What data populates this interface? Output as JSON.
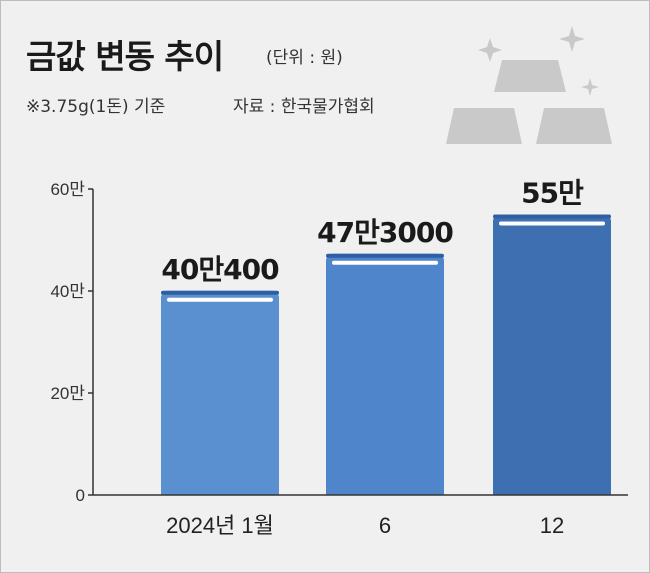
{
  "header": {
    "title": "금값 변동 추이",
    "unit": "(단위 : 원)",
    "note": "※3.75g(1돈) 기준",
    "source": "자료 : 한국물가협회"
  },
  "colors": {
    "bar_1": "#5a8fd0",
    "bar_2": "#4f86cb",
    "bar_3": "#3d6fb1",
    "bar_cap": "#2f5fa3",
    "axis": "#333333",
    "decor": "#c9c9c9"
  },
  "decor_icon": "gold-bars-icon",
  "chart_data": {
    "type": "bar",
    "categories": [
      "2024년 1월",
      "6",
      "12"
    ],
    "values": [
      400400,
      473000,
      550000
    ],
    "value_labels": [
      "40만400",
      "47만3000",
      "55만"
    ],
    "ylim": [
      0,
      600000
    ],
    "yticks": [
      0,
      200000,
      400000,
      600000
    ],
    "ytick_labels": [
      "0",
      "20만",
      "40만",
      "60만"
    ],
    "xlabel": "",
    "ylabel": "",
    "grid": false
  }
}
